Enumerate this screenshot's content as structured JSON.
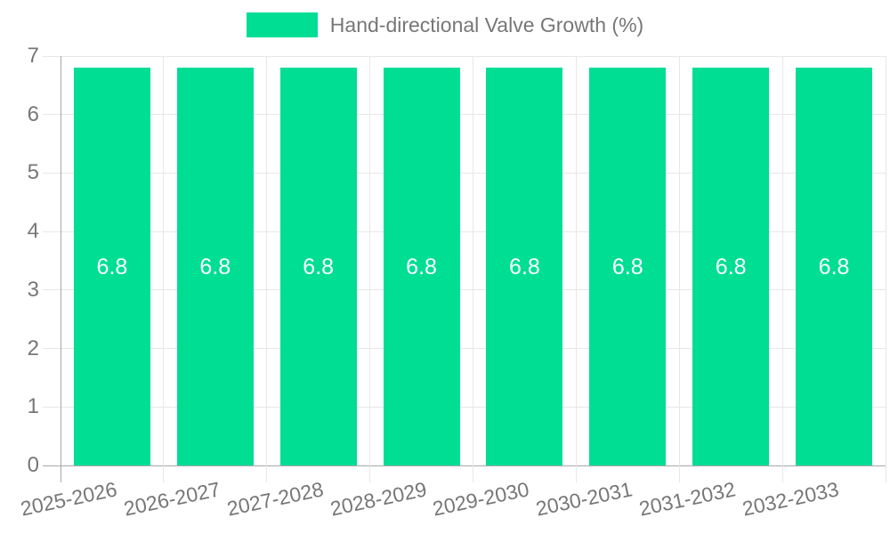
{
  "chart_data": {
    "type": "bar",
    "title": "",
    "categories": [
      "2025-2026",
      "2026-2027",
      "2027-2028",
      "2028-2029",
      "2029-2030",
      "2030-2031",
      "2031-2032",
      "2032-2033"
    ],
    "series": [
      {
        "name": "Hand-directional Valve Growth (%)",
        "values": [
          6.8,
          6.8,
          6.8,
          6.8,
          6.8,
          6.8,
          6.8,
          6.8
        ],
        "color": "#00DE94"
      }
    ],
    "bar_value_labels": [
      "6.8",
      "6.8",
      "6.8",
      "6.8",
      "6.8",
      "6.8",
      "6.8",
      "6.8"
    ],
    "xlabel": "",
    "ylabel": "",
    "ylim": [
      0,
      7
    ],
    "yticks": [
      0,
      1,
      2,
      3,
      4,
      5,
      6,
      7
    ],
    "ytick_labels": [
      "0",
      "1",
      "2",
      "3",
      "4",
      "5",
      "6",
      "7"
    ],
    "grid": true,
    "legend_position": "top",
    "colors": {
      "bar_fill": "#00DE94",
      "bar_label_text": "#ffffff",
      "tick_label_text": "#777777",
      "legend_text": "#777777",
      "gridline": "#e7e7e7",
      "axis_line": "#a8a8a8",
      "background": "#ffffff"
    }
  }
}
